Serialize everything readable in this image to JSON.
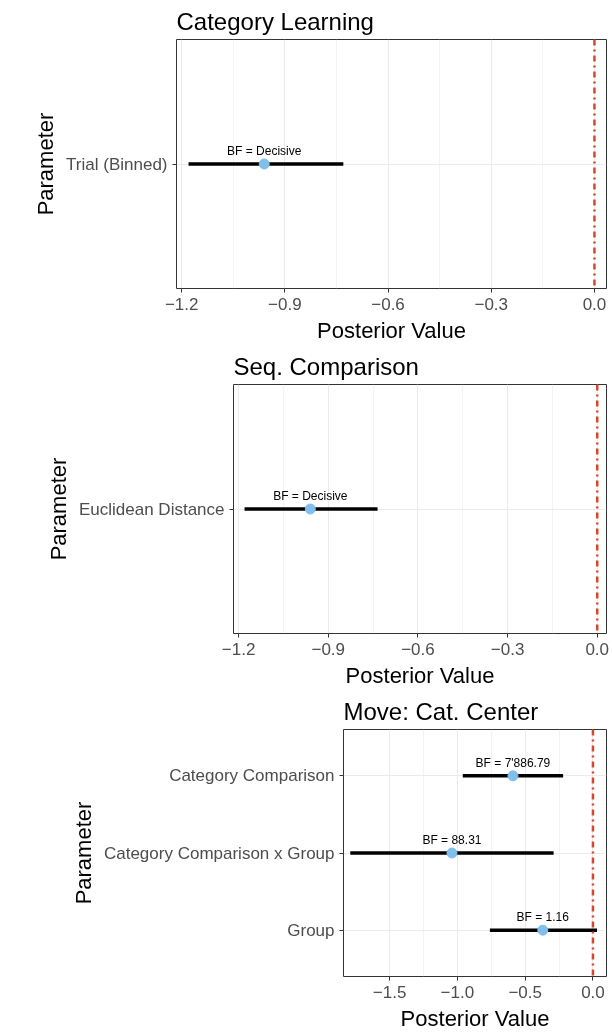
{
  "chart_data": [
    {
      "type": "scatter",
      "orientation": "horizontal",
      "title": "Category Learning",
      "xlabel": "Posterior Value",
      "ylabel": "Parameter",
      "categories": [
        "Trial (Binned)"
      ],
      "values": [
        -0.96
      ],
      "errors": [
        [
          -1.18,
          -0.73
        ]
      ],
      "annotations": [
        {
          "text": "BF = Decisive",
          "x": -0.96,
          "y": "Trial (Binned)"
        }
      ],
      "color": "#80bfeb",
      "marker": "circle",
      "grid": true,
      "xlim": [
        -1.215,
        0.035
      ],
      "xticks": [
        {
          "value": -1.2,
          "label": "−1.2"
        },
        {
          "value": -0.9,
          "label": "−0.9"
        },
        {
          "value": -0.6,
          "label": "−0.6"
        },
        {
          "value": -0.3,
          "label": "−0.3"
        },
        {
          "value": 0,
          "label": "0.0"
        }
      ],
      "ref_lines": [
        {
          "axis": "x",
          "value": 0,
          "color": "#d9472b",
          "line_style": "dashdot"
        }
      ]
    },
    {
      "type": "scatter",
      "orientation": "horizontal",
      "title": "Seq. Comparison",
      "xlabel": "Posterior Value",
      "ylabel": "Parameter",
      "categories": [
        "Euclidean Distance"
      ],
      "values": [
        -0.96
      ],
      "errors": [
        [
          -1.18,
          -0.735
        ]
      ],
      "annotations": [
        {
          "text": "BF = Decisive",
          "x": -0.96,
          "y": "Euclidean Distance"
        }
      ],
      "color": "#80bfeb",
      "marker": "circle",
      "grid": true,
      "xlim": [
        -1.217,
        0.031
      ],
      "xticks": [
        {
          "value": -1.2,
          "label": "−1.2"
        },
        {
          "value": -0.9,
          "label": "−0.9"
        },
        {
          "value": -0.6,
          "label": "−0.6"
        },
        {
          "value": -0.3,
          "label": "−0.3"
        },
        {
          "value": 0,
          "label": "0.0"
        }
      ],
      "ref_lines": [
        {
          "axis": "x",
          "value": 0,
          "color": "#d9472b",
          "line_style": "dashdot"
        }
      ]
    },
    {
      "type": "scatter",
      "orientation": "horizontal",
      "title": "Move: Cat. Center",
      "xlabel": "Posterior Value",
      "ylabel": "Parameter",
      "categories": [
        "Category Comparison",
        "Category Comparison x Group",
        "Group"
      ],
      "values": [
        -0.59,
        -1.04,
        -0.37
      ],
      "errors": [
        [
          -0.96,
          -0.22
        ],
        [
          -1.79,
          -0.29
        ],
        [
          -0.76,
          0.03
        ]
      ],
      "annotations": [
        {
          "text": "BF = 7'886.79",
          "x": -0.59,
          "y": "Category Comparison"
        },
        {
          "text": "BF = 88.31",
          "x": -1.04,
          "y": "Category Comparison x Group"
        },
        {
          "text": "BF = 1.16",
          "x": -0.37,
          "y": "Group"
        }
      ],
      "color": "#80bfeb",
      "marker": "circle",
      "grid": true,
      "xlim": [
        -1.84,
        0.1
      ],
      "xticks": [
        {
          "value": -1.5,
          "label": "−1.5"
        },
        {
          "value": -1.0,
          "label": "−1.0"
        },
        {
          "value": -0.5,
          "label": "−0.5"
        },
        {
          "value": 0,
          "label": "0.0"
        }
      ],
      "ref_lines": [
        {
          "axis": "x",
          "value": 0,
          "color": "#d9472b",
          "line_style": "dashdot"
        }
      ]
    }
  ]
}
